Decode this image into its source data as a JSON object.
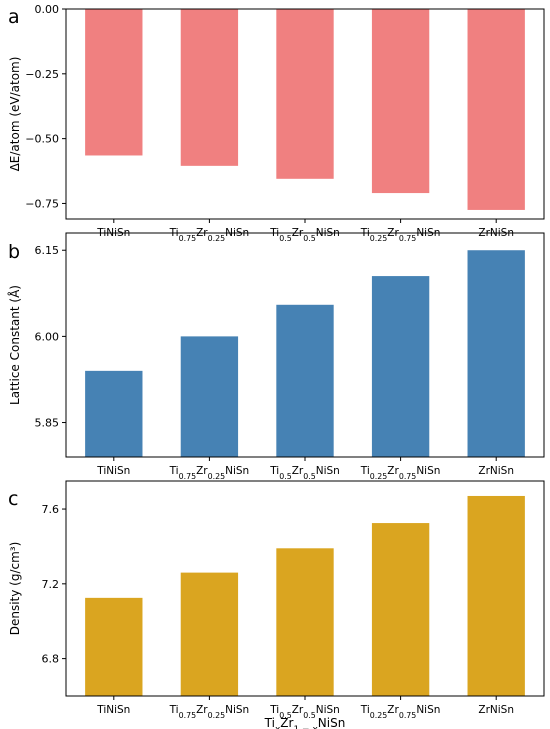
{
  "chart_data": [
    {
      "type": "bar",
      "panel_label": "a",
      "categories": [
        {
          "base": "TiNiSn",
          "parts": [
            [
              "TiNiSn",
              ""
            ]
          ]
        },
        {
          "base": "Ti0.75Zr0.25NiSn",
          "parts": [
            [
              "Ti",
              "0.75"
            ],
            [
              "Zr",
              "0.25"
            ],
            [
              "NiSn",
              ""
            ]
          ]
        },
        {
          "base": "Ti0.5Zr0.5NiSn",
          "parts": [
            [
              "Ti",
              "0.5"
            ],
            [
              "Zr",
              "0.5"
            ],
            [
              "NiSn",
              ""
            ]
          ]
        },
        {
          "base": "Ti0.25Zr0.75NiSn",
          "parts": [
            [
              "Ti",
              "0.25"
            ],
            [
              "Zr",
              "0.75"
            ],
            [
              "NiSn",
              ""
            ]
          ]
        },
        {
          "base": "ZrNiSn",
          "parts": [
            [
              "ZrNiSn",
              ""
            ]
          ]
        }
      ],
      "values": [
        -0.565,
        -0.605,
        -0.655,
        -0.71,
        -0.775
      ],
      "ylabel": "ΔE/atom (eV/atom)",
      "xlabel": "",
      "ylim": [
        -0.81,
        0.0
      ],
      "yticks": [
        0.0,
        -0.25,
        -0.5,
        -0.75
      ],
      "ytick_labels": [
        "0.00",
        "−0.25",
        "−0.50",
        "−0.75"
      ],
      "color": "#f08080",
      "grid": false
    },
    {
      "type": "bar",
      "panel_label": "b",
      "categories": [
        {
          "base": "TiNiSn",
          "parts": [
            [
              "TiNiSn",
              ""
            ]
          ]
        },
        {
          "base": "Ti0.75Zr0.25NiSn",
          "parts": [
            [
              "Ti",
              "0.75"
            ],
            [
              "Zr",
              "0.25"
            ],
            [
              "NiSn",
              ""
            ]
          ]
        },
        {
          "base": "Ti0.5Zr0.5NiSn",
          "parts": [
            [
              "Ti",
              "0.5"
            ],
            [
              "Zr",
              "0.5"
            ],
            [
              "NiSn",
              ""
            ]
          ]
        },
        {
          "base": "Ti0.25Zr0.75NiSn",
          "parts": [
            [
              "Ti",
              "0.25"
            ],
            [
              "Zr",
              "0.75"
            ],
            [
              "NiSn",
              ""
            ]
          ]
        },
        {
          "base": "ZrNiSn",
          "parts": [
            [
              "ZrNiSn",
              ""
            ]
          ]
        }
      ],
      "values": [
        5.94,
        6.0,
        6.055,
        6.105,
        6.15
      ],
      "ylabel": "Lattice Constant (Å)",
      "xlabel": "",
      "ylim": [
        5.79,
        6.18
      ],
      "yticks": [
        5.85,
        6.0,
        6.15
      ],
      "ytick_labels": [
        "5.85",
        "6.00",
        "6.15"
      ],
      "color": "#4682b4",
      "grid": false
    },
    {
      "type": "bar",
      "panel_label": "c",
      "categories": [
        {
          "base": "TiNiSn",
          "parts": [
            [
              "TiNiSn",
              ""
            ]
          ]
        },
        {
          "base": "Ti0.75Zr0.25NiSn",
          "parts": [
            [
              "Ti",
              "0.75"
            ],
            [
              "Zr",
              "0.25"
            ],
            [
              "NiSn",
              ""
            ]
          ]
        },
        {
          "base": "Ti0.5Zr0.5NiSn",
          "parts": [
            [
              "Ti",
              "0.5"
            ],
            [
              "Zr",
              "0.5"
            ],
            [
              "NiSn",
              ""
            ]
          ]
        },
        {
          "base": "Ti0.25Zr0.75NiSn",
          "parts": [
            [
              "Ti",
              "0.25"
            ],
            [
              "Zr",
              "0.75"
            ],
            [
              "NiSn",
              ""
            ]
          ]
        },
        {
          "base": "ZrNiSn",
          "parts": [
            [
              "ZrNiSn",
              ""
            ]
          ]
        }
      ],
      "values": [
        7.125,
        7.26,
        7.39,
        7.525,
        7.67
      ],
      "ylabel": "Density (g/cm³)",
      "xlabel": {
        "parts": [
          [
            "Ti",
            "x"
          ],
          [
            "Zr",
            "1 − x"
          ],
          [
            "NiSn",
            ""
          ]
        ]
      },
      "ylim": [
        6.6,
        7.75
      ],
      "yticks": [
        6.8,
        7.2,
        7.6
      ],
      "ytick_labels": [
        "6.8",
        "7.2",
        "7.6"
      ],
      "color": "#daa520",
      "grid": false
    }
  ]
}
